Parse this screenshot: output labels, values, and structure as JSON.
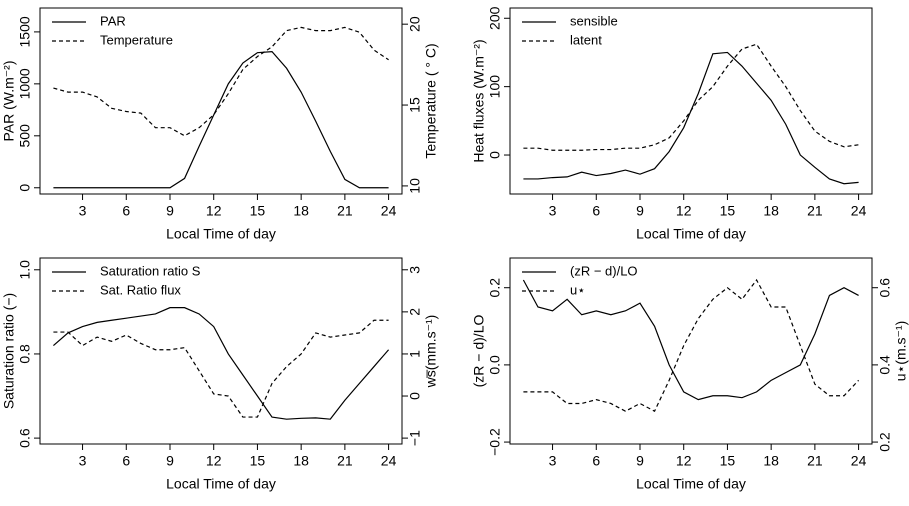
{
  "chart_data": [
    {
      "type": "line",
      "xlabel": "Local Time of day",
      "ylabel": "PAR (W.m⁻²)",
      "y2label": "Temperature ( ° C)",
      "x": [
        1,
        2,
        3,
        4,
        5,
        6,
        7,
        8,
        9,
        10,
        11,
        12,
        13,
        14,
        15,
        16,
        17,
        18,
        19,
        20,
        21,
        22,
        23,
        24
      ],
      "xlim": [
        0.08,
        24.92
      ],
      "xticks": [
        3,
        6,
        9,
        12,
        15,
        18,
        21,
        24
      ],
      "ylim": [
        -60,
        1730
      ],
      "yticks": [
        0,
        500,
        1000,
        1500
      ],
      "y2lim": [
        9.5,
        21
      ],
      "y2ticks": [
        10,
        15,
        20
      ],
      "series": [
        {
          "name": "PAR",
          "color": "#000000",
          "linestyle": "solid",
          "values": [
            0,
            0,
            0,
            0,
            0,
            0,
            0,
            0,
            0,
            90,
            400,
            700,
            1000,
            1200,
            1300,
            1310,
            1150,
            920,
            640,
            350,
            80,
            0,
            0,
            0
          ]
        },
        {
          "name": "Temperature",
          "color": "#000000",
          "linestyle": "dashed",
          "axis": "y2",
          "values": [
            16.05,
            15.8,
            15.8,
            15.5,
            14.8,
            14.6,
            14.5,
            13.6,
            13.6,
            13.1,
            13.6,
            14.4,
            15.7,
            17.2,
            18,
            18.6,
            19.6,
            19.8,
            19.6,
            19.6,
            19.8,
            19.5,
            18.4,
            17.8
          ]
        }
      ]
    },
    {
      "type": "line",
      "xlabel": "Local Time of day",
      "ylabel": "Heat fluxes (W.m⁻²)",
      "x": [
        1,
        2,
        3,
        4,
        5,
        6,
        7,
        8,
        9,
        10,
        11,
        12,
        13,
        14,
        15,
        16,
        17,
        18,
        19,
        20,
        21,
        22,
        23,
        24
      ],
      "xlim": [
        0.08,
        24.92
      ],
      "xticks": [
        3,
        6,
        9,
        12,
        15,
        18,
        21,
        24
      ],
      "ylim": [
        -57,
        215
      ],
      "yticks": [
        0,
        100,
        200
      ],
      "series": [
        {
          "name": "sensible",
          "color": "#000000",
          "linestyle": "solid",
          "values": [
            -35,
            -35,
            -33,
            -32,
            -25,
            -30,
            -27,
            -22,
            -28,
            -20,
            5,
            40,
            90,
            148,
            150,
            130,
            105,
            80,
            45,
            0,
            -18,
            -35,
            -42,
            -40
          ]
        },
        {
          "name": "latent",
          "color": "#000000",
          "linestyle": "dashed",
          "values": [
            10,
            10,
            7,
            7,
            7,
            8,
            8,
            10,
            10,
            15,
            25,
            50,
            80,
            100,
            130,
            155,
            162,
            130,
            100,
            65,
            35,
            20,
            12,
            15
          ]
        }
      ]
    },
    {
      "type": "line",
      "xlabel": "Local Time of day",
      "ylabel": "Saturation ratio (−)",
      "y2label": "ws̅(mm.s⁻¹)",
      "x": [
        1,
        2,
        3,
        4,
        5,
        6,
        7,
        8,
        9,
        10,
        11,
        12,
        13,
        14,
        15,
        16,
        17,
        18,
        19,
        20,
        21,
        22,
        23,
        24
      ],
      "xlim": [
        0.08,
        24.92
      ],
      "xticks": [
        3,
        6,
        9,
        12,
        15,
        18,
        21,
        24
      ],
      "ylim": [
        0.586,
        1.028
      ],
      "yticks": [
        0.6,
        0.8,
        {
          "value": 1,
          "label": "1.0"
        }
      ],
      "y2lim": [
        -1.14,
        3.28
      ],
      "y2ticks": [
        {
          "value": -1,
          "label": "−1"
        },
        0,
        1,
        2,
        3
      ],
      "series": [
        {
          "name": "Saturation ratio S",
          "color": "#000000",
          "linestyle": "solid",
          "values": [
            0.82,
            0.85,
            0.865,
            0.875,
            0.88,
            0.885,
            0.89,
            0.895,
            0.91,
            0.91,
            0.895,
            0.865,
            0.8,
            0.75,
            0.7,
            0.65,
            0.645,
            0.647,
            0.648,
            0.645,
            0.69,
            0.73,
            0.77,
            0.81
          ]
        },
        {
          "name": "Sat. Ratio flux",
          "color": "#000000",
          "linestyle": "dashed",
          "axis": "y2",
          "values": [
            1.52,
            1.52,
            1.2,
            1.4,
            1.3,
            1.45,
            1.25,
            1.1,
            1.1,
            1.15,
            0.6,
            0.05,
            0,
            -0.5,
            -0.5,
            0.3,
            0.7,
            1,
            1.5,
            1.4,
            1.45,
            1.5,
            1.8,
            1.8
          ]
        }
      ]
    },
    {
      "type": "line",
      "xlabel": "Local Time of day",
      "ylabel": "(zR − d)/LO",
      "y2label": "u⋆(m.s⁻¹)",
      "x": [
        1,
        2,
        3,
        4,
        5,
        6,
        7,
        8,
        9,
        10,
        11,
        12,
        13,
        14,
        15,
        16,
        17,
        18,
        19,
        20,
        21,
        22,
        23,
        24
      ],
      "xlim": [
        0.08,
        24.92
      ],
      "xticks": [
        3,
        6,
        9,
        12,
        15,
        18,
        21,
        24
      ],
      "ylim": [
        -0.205,
        0.277
      ],
      "yticks": [
        {
          "value": -0.2,
          "label": "−0.2"
        },
        {
          "value": 0,
          "label": "0.0"
        },
        0.2
      ],
      "y2lim": [
        0.195,
        0.677
      ],
      "y2ticks": [
        0.2,
        0.4,
        0.6
      ],
      "series": [
        {
          "name": "(zR − d)/LO",
          "color": "#000000",
          "linestyle": "solid",
          "values": [
            0.22,
            0.15,
            0.14,
            0.17,
            0.13,
            0.14,
            0.13,
            0.14,
            0.16,
            0.1,
            0,
            -0.07,
            -0.09,
            -0.08,
            -0.08,
            -0.085,
            -0.07,
            -0.04,
            -0.02,
            0,
            0.08,
            0.18,
            0.2,
            0.18
          ]
        },
        {
          "name": "u⋆",
          "color": "#000000",
          "linestyle": "dashed",
          "axis": "y2",
          "values": [
            0.33,
            0.33,
            0.33,
            0.3,
            0.3,
            0.31,
            0.3,
            0.28,
            0.3,
            0.28,
            0.36,
            0.45,
            0.52,
            0.57,
            0.6,
            0.57,
            0.62,
            0.55,
            0.55,
            0.45,
            0.35,
            0.32,
            0.32,
            0.36
          ]
        }
      ]
    }
  ]
}
